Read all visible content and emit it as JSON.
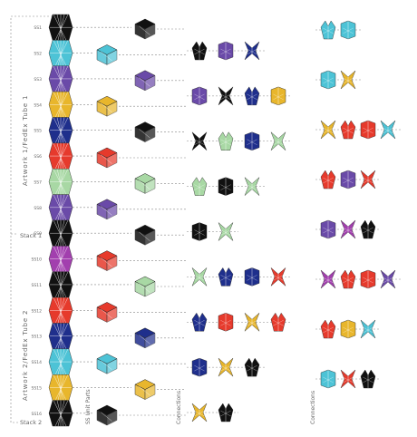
{
  "labels": {
    "stack1": "Stack 1",
    "stack2": "Stack 2",
    "tube1": "Artwork 1/FedEx Tube 1",
    "tube2": "Artwork 2/FedEx Tube 2",
    "unit_parts": "SS Unit Parts",
    "connections_a": "Connections",
    "connections_b": "Connections"
  },
  "unit_labels": [
    "SS1",
    "SS2",
    "SS3",
    "SS4",
    "SS5",
    "SS6",
    "SS7",
    "SS8",
    "SS9",
    "SS10",
    "SS11",
    "SS12",
    "SS13",
    "SS14",
    "SS15",
    "SS16"
  ],
  "colors": {
    "black": "#111111",
    "cyan": "#4dc3d6",
    "purple": "#6a4aa8",
    "yellow": "#e8b62c",
    "red": "#e63a2c",
    "green": "#a8d8a4",
    "navy": "#1f2f8c",
    "magenta": "#a23fae"
  },
  "stack_colors": [
    "black",
    "cyan",
    "purple",
    "yellow",
    "navy",
    "red",
    "green",
    "purple",
    "black",
    "magenta",
    "black",
    "red",
    "navy",
    "cyan",
    "yellow",
    "black"
  ],
  "unit_parts": [
    {
      "color": "black"
    },
    {
      "color": "cyan"
    },
    {
      "color": "purple"
    },
    {
      "color": "yellow"
    },
    {
      "color": "black"
    },
    {
      "color": "red"
    },
    {
      "color": "green"
    },
    {
      "color": "purple"
    },
    {
      "color": "black"
    },
    {
      "color": "red"
    },
    {
      "color": "green"
    },
    {
      "color": "red"
    },
    {
      "color": "navy"
    },
    {
      "color": "cyan"
    },
    {
      "color": "yellow"
    },
    {
      "color": "black"
    }
  ],
  "connections_a": [
    [
      "black",
      "purple",
      "navy"
    ],
    [
      "purple",
      "black",
      "navy",
      "yellow"
    ],
    [
      "black",
      "green",
      "navy",
      "green"
    ],
    [
      "green",
      "black",
      "green"
    ],
    [
      "black",
      "green"
    ],
    [
      "green",
      "navy",
      "navy",
      "red"
    ],
    [
      "navy",
      "red",
      "yellow",
      "red"
    ],
    [
      "navy",
      "yellow",
      "black"
    ],
    [
      "yellow",
      "black"
    ]
  ],
  "connections_b": [
    [
      "cyan",
      "cyan"
    ],
    [
      "cyan",
      "yellow"
    ],
    [
      "yellow",
      "red",
      "red",
      "cyan"
    ],
    [
      "red",
      "purple",
      "red"
    ],
    [
      "purple",
      "magenta",
      "black"
    ],
    [
      "magenta",
      "red",
      "red",
      "purple"
    ],
    [
      "red",
      "yellow",
      "cyan"
    ],
    [
      "cyan",
      "red",
      "black"
    ]
  ]
}
